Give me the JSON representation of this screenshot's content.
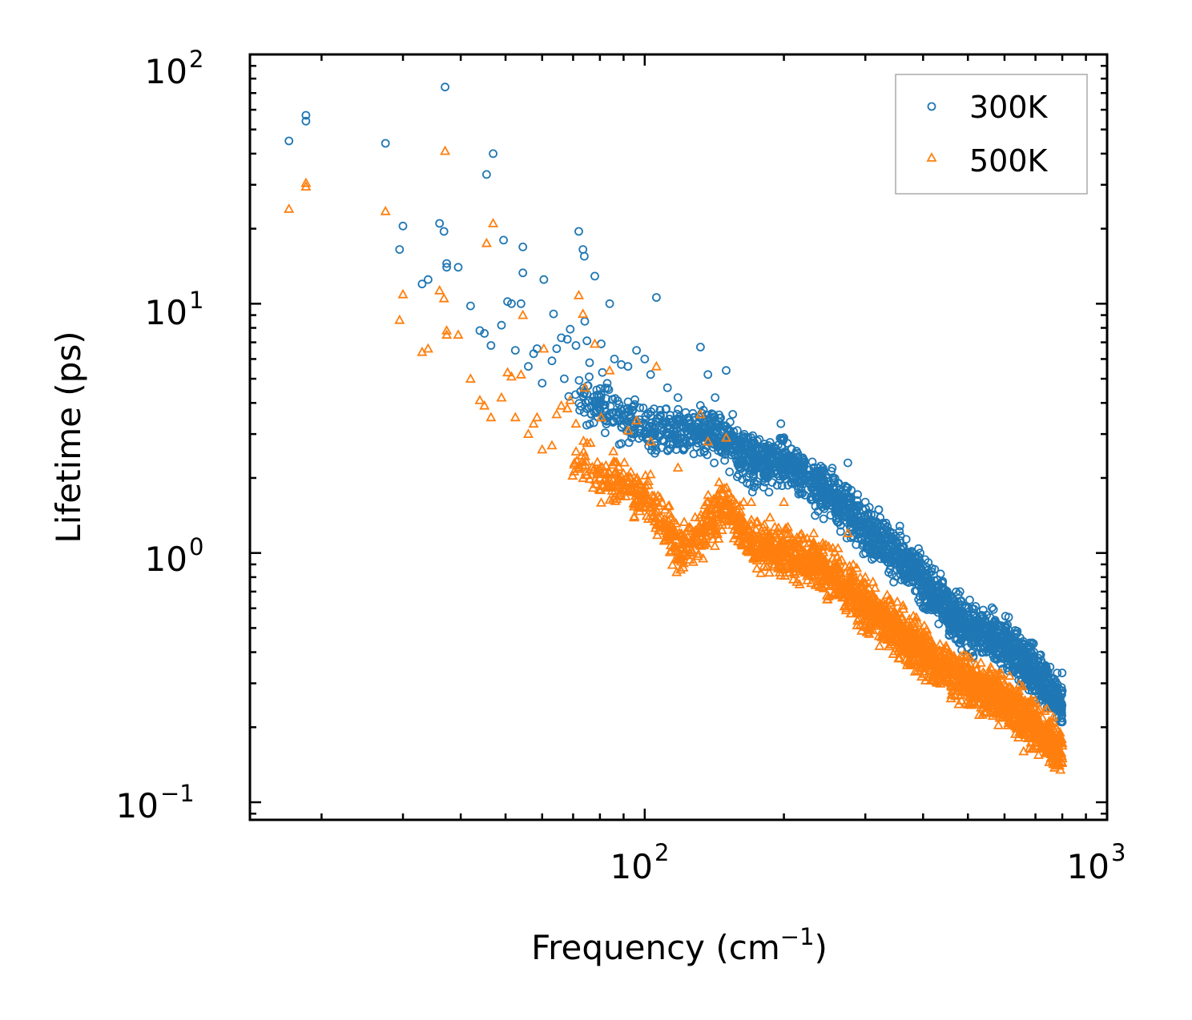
{
  "chart_data": {
    "type": "scatter",
    "title": "",
    "xlabel": {
      "main": "Frequency (cm",
      "sup": "−1",
      "tail": ")"
    },
    "ylabel": "Lifetime (ps)",
    "xscale": "log",
    "yscale": "log",
    "xlim": [
      14,
      1000
    ],
    "ylim": [
      0.085,
      100
    ],
    "x_ticks": [
      {
        "base": "10",
        "exp": "2",
        "value": 100
      },
      {
        "base": "10",
        "exp": "3",
        "value": 1000
      }
    ],
    "y_ticks": [
      {
        "base": "10",
        "exp": "2",
        "value": 100
      },
      {
        "base": "10",
        "exp": "1",
        "value": 10
      },
      {
        "base": "10",
        "exp": "0",
        "value": 1
      },
      {
        "base": "10",
        "exp": "−1",
        "value": 0.1
      }
    ],
    "legend_position": "top-right",
    "series": [
      {
        "name": "300K",
        "color": "#1f77b4",
        "marker": "circle",
        "points": [
          [
            17,
            45
          ],
          [
            18.5,
            57
          ],
          [
            18.5,
            54
          ],
          [
            27.5,
            44
          ],
          [
            29.5,
            16.5
          ],
          [
            30,
            20.5
          ],
          [
            33,
            12
          ],
          [
            34,
            12.5
          ],
          [
            36,
            21
          ],
          [
            36.8,
            19.5
          ],
          [
            37,
            74
          ],
          [
            37.3,
            14.5
          ],
          [
            37.3,
            14
          ],
          [
            39.5,
            14
          ],
          [
            42,
            9.8
          ],
          [
            44,
            7.8
          ],
          [
            45,
            7.6
          ],
          [
            45.5,
            33
          ],
          [
            46.5,
            6.8
          ],
          [
            47,
            40
          ],
          [
            49,
            8.2
          ],
          [
            49.5,
            18
          ],
          [
            50.5,
            10.2
          ],
          [
            51.5,
            10
          ],
          [
            52.5,
            6.5
          ],
          [
            54,
            10
          ],
          [
            54.5,
            13.3
          ],
          [
            54.5,
            16.9
          ],
          [
            56,
            5.6
          ],
          [
            57.5,
            6.3
          ],
          [
            58.5,
            6.6
          ],
          [
            60,
            4.8
          ],
          [
            60.5,
            12.5
          ],
          [
            63,
            5.9
          ],
          [
            63.5,
            9.1
          ],
          [
            64.5,
            6.6
          ],
          [
            66,
            7.3
          ],
          [
            67,
            5
          ],
          [
            68,
            7.2
          ],
          [
            69,
            7.9
          ],
          [
            71,
            6.8
          ],
          [
            72,
            19.5
          ],
          [
            73.5,
            16.5
          ],
          [
            74,
            15.5
          ],
          [
            74.2,
            8.5
          ],
          [
            75,
            7.1
          ],
          [
            76,
            5.8
          ],
          [
            78,
            12.9
          ],
          [
            80.5,
            6.9
          ],
          [
            81,
            5.3
          ],
          [
            84,
            10
          ],
          [
            86,
            6
          ],
          [
            89,
            5.7
          ],
          [
            92,
            5.6
          ],
          [
            96,
            6.5
          ],
          [
            100,
            6
          ],
          [
            103,
            5.2
          ],
          [
            106,
            10.6
          ],
          [
            112,
            4.6
          ],
          [
            118,
            4.2
          ],
          [
            132,
            6.7
          ],
          [
            137,
            5.2
          ],
          [
            142,
            4.2
          ],
          [
            150,
            5.4
          ],
          [
            155,
            3.6
          ],
          [
            170,
            2.9
          ],
          [
            185,
            2.7
          ],
          [
            197,
            3.3
          ],
          [
            200,
            2.9
          ],
          [
            215,
            2.4
          ],
          [
            232,
            2.2
          ],
          [
            255,
            2
          ],
          [
            275,
            2.3
          ],
          [
            300,
            1.6
          ],
          [
            330,
            1.15
          ],
          [
            360,
            0.9
          ],
          [
            390,
            0.9
          ],
          [
            420,
            0.72
          ],
          [
            460,
            0.6
          ],
          [
            500,
            0.47
          ],
          [
            540,
            0.4
          ],
          [
            600,
            0.49
          ],
          [
            660,
            0.33
          ],
          [
            720,
            0.37
          ],
          [
            780,
            0.33
          ],
          [
            800,
            0.28
          ]
        ],
        "trend": [
          [
            68,
            4.4
          ],
          [
            100,
            3.2
          ],
          [
            130,
            3.0
          ],
          [
            150,
            2.9
          ],
          [
            170,
            2.3
          ],
          [
            200,
            2.3
          ],
          [
            250,
            1.75
          ],
          [
            300,
            1.25
          ],
          [
            350,
            1.0
          ],
          [
            400,
            0.76
          ],
          [
            500,
            0.5
          ],
          [
            600,
            0.43
          ],
          [
            700,
            0.33
          ],
          [
            800,
            0.25
          ]
        ],
        "spread": 0.28,
        "cloud_count": 2300
      },
      {
        "name": "500K",
        "color": "#ff7f0e",
        "marker": "triangle",
        "points": [
          [
            17,
            24
          ],
          [
            18.5,
            30.5
          ],
          [
            18.5,
            29.5
          ],
          [
            27.5,
            23.5
          ],
          [
            29.5,
            8.6
          ],
          [
            30,
            10.9
          ],
          [
            33,
            6.4
          ],
          [
            34,
            6.6
          ],
          [
            36,
            11.3
          ],
          [
            36.8,
            10.5
          ],
          [
            37,
            41
          ],
          [
            37.3,
            7.8
          ],
          [
            37.3,
            7.5
          ],
          [
            39.5,
            7.5
          ],
          [
            42,
            5
          ],
          [
            44,
            4.1
          ],
          [
            45,
            3.9
          ],
          [
            45.5,
            17.5
          ],
          [
            46.5,
            3.5
          ],
          [
            47,
            21
          ],
          [
            49,
            4.2
          ],
          [
            50.5,
            5.3
          ],
          [
            51.5,
            5.1
          ],
          [
            52.5,
            3.5
          ],
          [
            54,
            5.2
          ],
          [
            54.5,
            9
          ],
          [
            56,
            3
          ],
          [
            57.5,
            3.3
          ],
          [
            58.5,
            3.5
          ],
          [
            60,
            2.6
          ],
          [
            60.5,
            6.6
          ],
          [
            63,
            2.7
          ],
          [
            64.5,
            3.6
          ],
          [
            66,
            3.9
          ],
          [
            68,
            3.8
          ],
          [
            69,
            4.1
          ],
          [
            71,
            3.3
          ],
          [
            72,
            10.8
          ],
          [
            73.5,
            9.1
          ],
          [
            74.2,
            4.6
          ],
          [
            78,
            6.9
          ],
          [
            80.5,
            3.5
          ],
          [
            84,
            5.4
          ],
          [
            92,
            3.1
          ],
          [
            96,
            3.4
          ],
          [
            103,
            2.8
          ],
          [
            106,
            5.6
          ],
          [
            118,
            2.2
          ],
          [
            132,
            3.6
          ],
          [
            137,
            2.8
          ],
          [
            150,
            2.9
          ],
          [
            170,
            1.6
          ],
          [
            200,
            1.6
          ],
          [
            232,
            1.2
          ],
          [
            275,
            1.2
          ],
          [
            300,
            0.8
          ],
          [
            330,
            0.55
          ],
          [
            390,
            0.45
          ],
          [
            460,
            0.3
          ],
          [
            540,
            0.24
          ],
          [
            600,
            0.3
          ],
          [
            660,
            0.16
          ],
          [
            720,
            0.2
          ],
          [
            780,
            0.14
          ],
          [
            800,
            0.15
          ]
        ],
        "trend": [
          [
            68,
            2.4
          ],
          [
            100,
            1.7
          ],
          [
            120,
            1.0
          ],
          [
            150,
            1.6
          ],
          [
            170,
            1.1
          ],
          [
            200,
            1.0
          ],
          [
            250,
            0.85
          ],
          [
            300,
            0.62
          ],
          [
            350,
            0.5
          ],
          [
            400,
            0.4
          ],
          [
            500,
            0.3
          ],
          [
            600,
            0.26
          ],
          [
            700,
            0.2
          ],
          [
            800,
            0.16
          ]
        ],
        "spread": 0.28,
        "cloud_count": 2300
      }
    ]
  }
}
